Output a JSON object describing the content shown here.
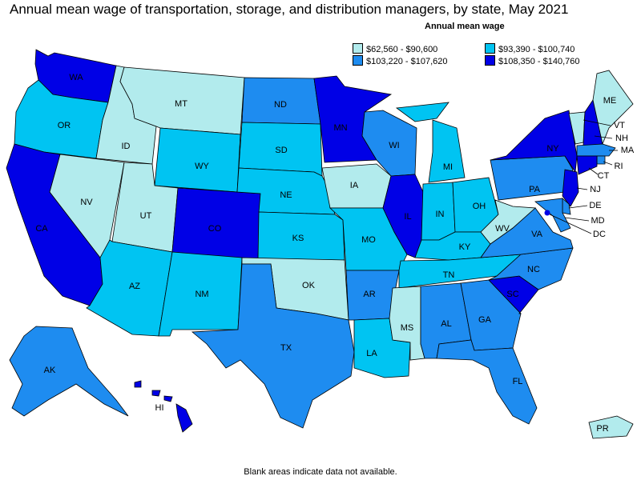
{
  "title": "Annual mean wage of transportation, storage, and distribution managers, by state, May 2021",
  "legend": {
    "title": "Annual mean wage",
    "bins": [
      {
        "label": "$62,560 - $90,600",
        "color": "#b2ebed"
      },
      {
        "label": "$93,390 - $100,740",
        "color": "#00c4f2"
      },
      {
        "label": "$103,220 - $107,620",
        "color": "#1e8cf0"
      },
      {
        "label": "$108,350 - $140,760",
        "color": "#0000e6"
      }
    ]
  },
  "footer": "Blank areas indicate data not available.",
  "states": [
    {
      "abbr": "WA",
      "bin": 3
    },
    {
      "abbr": "OR",
      "bin": 1
    },
    {
      "abbr": "CA",
      "bin": 3
    },
    {
      "abbr": "ID",
      "bin": 0
    },
    {
      "abbr": "NV",
      "bin": 0
    },
    {
      "abbr": "MT",
      "bin": 0
    },
    {
      "abbr": "WY",
      "bin": 1
    },
    {
      "abbr": "UT",
      "bin": 0
    },
    {
      "abbr": "AZ",
      "bin": 1
    },
    {
      "abbr": "CO",
      "bin": 3
    },
    {
      "abbr": "NM",
      "bin": 1
    },
    {
      "abbr": "ND",
      "bin": 2
    },
    {
      "abbr": "SD",
      "bin": 1
    },
    {
      "abbr": "NE",
      "bin": 1
    },
    {
      "abbr": "KS",
      "bin": 1
    },
    {
      "abbr": "OK",
      "bin": 0
    },
    {
      "abbr": "TX",
      "bin": 2
    },
    {
      "abbr": "MN",
      "bin": 3
    },
    {
      "abbr": "IA",
      "bin": 0
    },
    {
      "abbr": "MO",
      "bin": 1
    },
    {
      "abbr": "AR",
      "bin": 2
    },
    {
      "abbr": "LA",
      "bin": 1
    },
    {
      "abbr": "WI",
      "bin": 2
    },
    {
      "abbr": "IL",
      "bin": 3
    },
    {
      "abbr": "MI",
      "bin": 1
    },
    {
      "abbr": "IN",
      "bin": 1
    },
    {
      "abbr": "OH",
      "bin": 1
    },
    {
      "abbr": "KY",
      "bin": 1
    },
    {
      "abbr": "TN",
      "bin": 1
    },
    {
      "abbr": "MS",
      "bin": 0
    },
    {
      "abbr": "AL",
      "bin": 2
    },
    {
      "abbr": "GA",
      "bin": 2
    },
    {
      "abbr": "FL",
      "bin": 2
    },
    {
      "abbr": "SC",
      "bin": 3
    },
    {
      "abbr": "NC",
      "bin": 2
    },
    {
      "abbr": "VA",
      "bin": 2
    },
    {
      "abbr": "WV",
      "bin": 0
    },
    {
      "abbr": "PA",
      "bin": 2
    },
    {
      "abbr": "NY",
      "bin": 3
    },
    {
      "abbr": "VT",
      "bin": 0
    },
    {
      "abbr": "NH",
      "bin": 3
    },
    {
      "abbr": "ME",
      "bin": 0
    },
    {
      "abbr": "MA",
      "bin": 2
    },
    {
      "abbr": "RI",
      "bin": 2
    },
    {
      "abbr": "CT",
      "bin": 3
    },
    {
      "abbr": "NJ",
      "bin": 3
    },
    {
      "abbr": "DE",
      "bin": 2
    },
    {
      "abbr": "MD",
      "bin": 2
    },
    {
      "abbr": "DC",
      "bin": 3
    },
    {
      "abbr": "AK",
      "bin": 2
    },
    {
      "abbr": "HI",
      "bin": 3
    },
    {
      "abbr": "PR",
      "bin": 0
    }
  ]
}
